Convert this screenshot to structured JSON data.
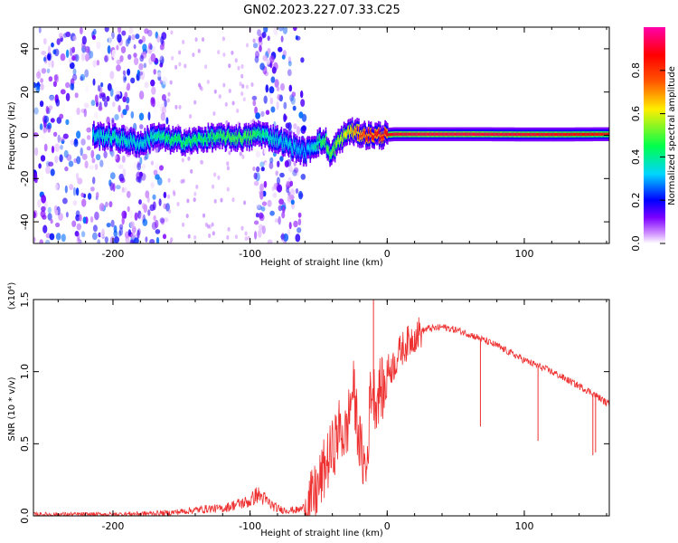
{
  "title": "GN02.2023.227.07.33.C25",
  "chart_data": [
    {
      "type": "heatmap",
      "xlabel": "Height of straight line (km)",
      "ylabel": "Frequency (Hz)",
      "xlim": [
        -258,
        162
      ],
      "ylim": [
        -50,
        50
      ],
      "xticks": [
        -200,
        -100,
        0,
        100
      ],
      "yticks": [
        -40,
        -20,
        0,
        20,
        40
      ],
      "colorbar": {
        "label": "Normalized spectral amplitude",
        "range": [
          0,
          1
        ],
        "ticks": [
          "0.0",
          "0.2",
          "0.4",
          "0.6",
          "0.8"
        ],
        "colormap": [
          "#ffffff",
          "#cc88ff",
          "#7b00ff",
          "#0000ff",
          "#00d5ff",
          "#00ff4c",
          "#ffee00",
          "#ff5500",
          "#ff0000",
          "#ff00aa"
        ]
      },
      "noise_regions": [
        {
          "x": [
            -258,
            -160
          ],
          "amplitude": 0.3
        },
        {
          "x": [
            -97,
            -60
          ],
          "amplitude": 0.3
        }
      ],
      "ridge": [
        {
          "x": -215,
          "f": 0,
          "amp": 0.35
        },
        {
          "x": -200,
          "f": -1,
          "amp": 0.4
        },
        {
          "x": -180,
          "f": -4,
          "amp": 0.35
        },
        {
          "x": -170,
          "f": 0,
          "amp": 0.4
        },
        {
          "x": -160,
          "f": -2,
          "amp": 0.45
        },
        {
          "x": -145,
          "f": -3,
          "amp": 0.45
        },
        {
          "x": -130,
          "f": -1,
          "amp": 0.45
        },
        {
          "x": -115,
          "f": -1,
          "amp": 0.5
        },
        {
          "x": -100,
          "f": -1,
          "amp": 0.5
        },
        {
          "x": -95,
          "f": 1,
          "amp": 0.45
        },
        {
          "x": -80,
          "f": -2,
          "amp": 0.35
        },
        {
          "x": -70,
          "f": -5,
          "amp": 0.35
        },
        {
          "x": -60,
          "f": -8,
          "amp": 0.3
        },
        {
          "x": -55,
          "f": -5,
          "amp": 0.35
        },
        {
          "x": -50,
          "f": -3,
          "amp": 0.45
        },
        {
          "x": -45,
          "f": -3,
          "amp": 0.5
        },
        {
          "x": -42,
          "f": -10,
          "amp": 0.5
        },
        {
          "x": -38,
          "f": -5,
          "amp": 0.55
        },
        {
          "x": -33,
          "f": -1,
          "amp": 0.6
        },
        {
          "x": -28,
          "f": 2,
          "amp": 0.65
        },
        {
          "x": -22,
          "f": 1,
          "amp": 0.75
        },
        {
          "x": -15,
          "f": 0,
          "amp": 0.85
        },
        {
          "x": -5,
          "f": 0,
          "amp": 0.85
        },
        {
          "x": 5,
          "f": 0.5,
          "amp": 0.9
        },
        {
          "x": 30,
          "f": 0.5,
          "amp": 0.92
        },
        {
          "x": 60,
          "f": 0.5,
          "amp": 0.92
        },
        {
          "x": 100,
          "f": 0.4,
          "amp": 0.9
        },
        {
          "x": 130,
          "f": 0.4,
          "amp": 0.88
        },
        {
          "x": 162,
          "f": 0.5,
          "amp": 0.85
        }
      ]
    },
    {
      "type": "line",
      "xlabel": "Height of straight line (km)",
      "ylabel": "SNR (10 * v/v)",
      "yscale_label": "(x10⁴)",
      "xlim": [
        -258,
        162
      ],
      "ylim": [
        0,
        1.5
      ],
      "xticks": [
        -200,
        -100,
        0,
        100
      ],
      "yticks": [
        "0.0",
        "0.5",
        "1.0",
        "1.5"
      ],
      "color": "#ee3030",
      "x": [
        -258,
        -240,
        -220,
        -200,
        -180,
        -160,
        -150,
        -140,
        -130,
        -120,
        -110,
        -100,
        -95,
        -90,
        -85,
        -80,
        -75,
        -70,
        -65,
        -60,
        -55,
        -50,
        -45,
        -40,
        -35,
        -30,
        -25,
        -20,
        -18,
        -15,
        -12,
        -10,
        -8,
        -5,
        -2,
        0,
        5,
        10,
        15,
        20,
        25,
        30,
        35,
        40,
        50,
        60,
        70,
        80,
        90,
        100,
        110,
        120,
        130,
        140,
        150,
        162
      ],
      "y": [
        0.01,
        0.01,
        0.01,
        0.01,
        0.015,
        0.02,
        0.03,
        0.04,
        0.05,
        0.05,
        0.08,
        0.1,
        0.15,
        0.12,
        0.08,
        0.05,
        0.04,
        0.04,
        0.04,
        0.06,
        0.1,
        0.2,
        0.35,
        0.45,
        0.6,
        0.55,
        0.9,
        0.5,
        0.4,
        0.3,
        0.9,
        0.85,
        0.8,
        0.9,
        0.85,
        1.0,
        1.05,
        1.15,
        1.2,
        1.25,
        1.28,
        1.3,
        1.3,
        1.31,
        1.29,
        1.26,
        1.22,
        1.18,
        1.13,
        1.08,
        1.04,
        1.0,
        0.95,
        0.9,
        0.85,
        0.77
      ],
      "spikes": [
        {
          "x": -10,
          "y": 1.5
        },
        {
          "x": 68,
          "y": 0.62
        },
        {
          "x": 110,
          "y": 0.52
        },
        {
          "x": 150,
          "y": 0.42
        },
        {
          "x": 152,
          "y": 0.44
        }
      ]
    }
  ]
}
